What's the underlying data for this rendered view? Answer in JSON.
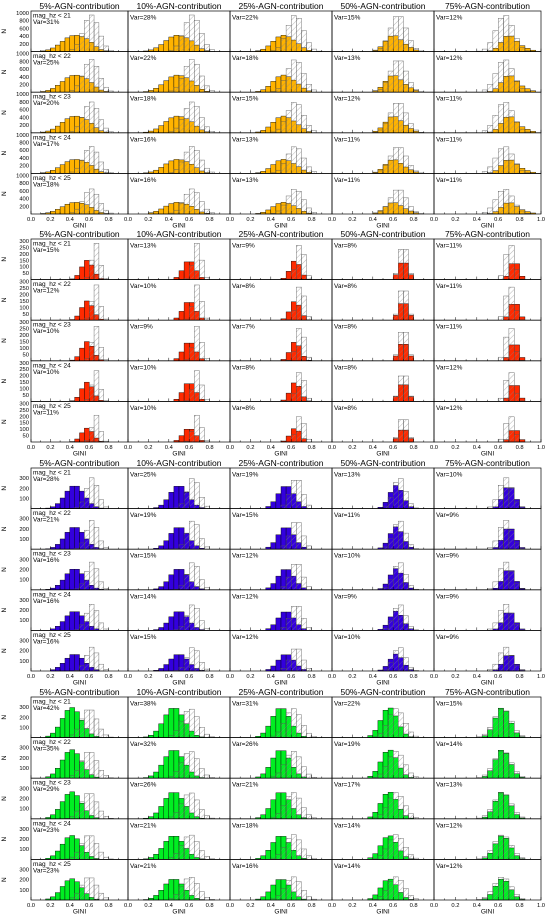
{
  "chart_data": {
    "type": "bar",
    "x_label": "GINI",
    "y_label": "N",
    "column_titles": [
      "5%-AGN-contribution",
      "10%-AGN-contribution",
      "25%-AGN-contribution",
      "50%-AGN-contribution",
      "75%-AGN-contribution"
    ],
    "row_labels": [
      "mag_hz < 21",
      "mag_hz < 22",
      "mag_hz < 23",
      "mag_hz < 24",
      "mag_hz < 25"
    ],
    "x_range": [
      0.0,
      1.0
    ],
    "x_ticks": [
      "0.0",
      "0.2",
      "0.4",
      "0.6",
      "0.8",
      "1.0"
    ],
    "bin_width": 0.05,
    "hatched_histogram": "outline with diagonal hatching",
    "blocks": [
      {
        "color": "#ffb300",
        "y_range": [
          0,
          1000
        ],
        "y_ticks": [
          "200",
          "400",
          "600",
          "800",
          "1000"
        ],
        "var_labels": [
          [
            "Var=31%",
            "Var=28%",
            "Var=22%",
            "Var=15%",
            "Var=12%"
          ],
          [
            "Var=25%",
            "Var=22%",
            "Var=18%",
            "Var=13%",
            "Var=12%"
          ],
          [
            "Var=20%",
            "Var=18%",
            "Var=15%",
            "Var=12%",
            "Var=11%"
          ],
          [
            "Var=17%",
            "Var=16%",
            "Var=13%",
            "Var=11%",
            "Var=11%"
          ],
          [
            "Var=18%",
            "Var=16%",
            "Var=13%",
            "Var=11%",
            "Var=11%"
          ]
        ]
      },
      {
        "color": "#ff2a00",
        "y_range": [
          0,
          300
        ],
        "y_ticks": [
          "50",
          "100",
          "150",
          "200",
          "250",
          "300"
        ],
        "var_labels": [
          [
            "Var=15%",
            "Var=13%",
            "Var=9%",
            "Var=8%",
            "Var=11%"
          ],
          [
            "Var=12%",
            "Var=10%",
            "Var=8%",
            "Var=8%",
            "Var=11%"
          ],
          [
            "Var=10%",
            "Var=9%",
            "Var=7%",
            "Var=8%",
            "Var=11%"
          ],
          [
            "Var=10%",
            "Var=10%",
            "Var=8%",
            "Var=8%",
            "Var=12%"
          ],
          [
            "Var=11%",
            "Var=10%",
            "Var=8%",
            "Var=8%",
            "Var=12%"
          ]
        ]
      },
      {
        "color": "#3300dd",
        "y_range": [
          0,
          380
        ],
        "y_ticks": [
          "100",
          "200",
          "300"
        ],
        "var_labels": [
          [
            "Var=28%",
            "Var=25%",
            "Var=19%",
            "Var=13%",
            "Var=10%"
          ],
          [
            "Var=21%",
            "Var=19%",
            "Var=15%",
            "Var=11%",
            "Var=9%"
          ],
          [
            "Var=16%",
            "Var=15%",
            "Var=12%",
            "Var=10%",
            "Var=9%"
          ],
          [
            "Var=16%",
            "Var=14%",
            "Var=12%",
            "Var=9%",
            "Var=9%"
          ],
          [
            "Var=16%",
            "Var=15%",
            "Var=12%",
            "Var=10%",
            "Var=9%"
          ]
        ]
      },
      {
        "color": "#00ee22",
        "y_range": [
          0,
          380
        ],
        "y_ticks": [
          "100",
          "200",
          "300"
        ],
        "var_labels": [
          [
            "Var=42%",
            "Var=38%",
            "Var=31%",
            "Var=22%",
            "Var=15%"
          ],
          [
            "Var=35%",
            "Var=32%",
            "Var=26%",
            "Var=19%",
            "Var=14%"
          ],
          [
            "Var=29%",
            "Var=26%",
            "Var=21%",
            "Var=17%",
            "Var=13%"
          ],
          [
            "Var=23%",
            "Var=21%",
            "Var=18%",
            "Var=14%",
            "Var=12%"
          ],
          [
            "Var=23%",
            "Var=21%",
            "Var=16%",
            "Var=14%",
            "Var=12%"
          ]
        ]
      }
    ],
    "distributions": {
      "colored_peak_gini": [
        [
          0.45,
          0.48,
          0.52,
          0.6,
          0.7
        ],
        [
          0.58,
          0.6,
          0.64,
          0.7,
          0.75
        ],
        [
          0.45,
          0.5,
          0.55,
          0.63,
          0.7
        ],
        [
          0.42,
          0.45,
          0.5,
          0.56,
          0.64
        ]
      ],
      "colored_width_gini": [
        [
          0.13,
          0.12,
          0.1,
          0.08,
          0.07
        ],
        [
          0.06,
          0.06,
          0.05,
          0.045,
          0.04
        ],
        [
          0.1,
          0.09,
          0.08,
          0.065,
          0.055
        ],
        [
          0.1,
          0.1,
          0.09,
          0.08,
          0.07
        ]
      ],
      "colored_peak_fraction_by_row": [
        [
          0.42,
          0.44,
          0.43,
          0.36,
          0.3
        ],
        [
          0.5,
          0.5,
          0.5,
          0.5,
          0.36
        ],
        [
          0.6,
          0.58,
          0.55,
          0.5,
          0.44
        ],
        [
          0.78,
          0.74,
          0.7,
          0.62,
          0.55
        ]
      ],
      "hatched_peak_gini": [
        0.62,
        0.67,
        0.63,
        0.6
      ],
      "hatched_width_gini": [
        0.08,
        0.04,
        0.06,
        0.08
      ],
      "hatched_peak_fraction_by_row": [
        [
          0.95,
          0.85,
          0.8,
          0.7,
          0.65
        ],
        [
          0.95,
          0.92,
          0.9,
          0.8,
          0.7
        ],
        [
          0.8,
          0.75,
          0.72,
          0.68,
          0.62
        ],
        [
          0.75,
          0.7,
          0.68,
          0.64,
          0.6
        ]
      ]
    }
  }
}
